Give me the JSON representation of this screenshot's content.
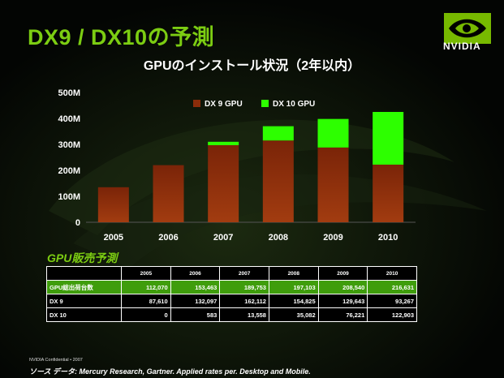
{
  "slide": {
    "title": "DX9 / DX10の予測",
    "logo_text": "NVIDIA",
    "confidential": "NVIDIA Confidential • 2007",
    "source": "ソース データ: Mercury Research, Gartner. Applied rates per. Desktop and Mobile."
  },
  "chart_data": {
    "type": "bar",
    "stacked": true,
    "title": "GPUのインストール状況（2年以内）",
    "categories": [
      "2005",
      "2006",
      "2007",
      "2008",
      "2009",
      "2010"
    ],
    "series": [
      {
        "name": "DX 9 GPU",
        "color": "#8b2c0a",
        "values": [
          135,
          220,
          297,
          315,
          288,
          222
        ]
      },
      {
        "name": "DX 10 GPU",
        "color": "#2dff00",
        "values": [
          0,
          0,
          13,
          55,
          110,
          203
        ]
      }
    ],
    "y_ticks": [
      "0",
      "100M",
      "200M",
      "300M",
      "400M",
      "500M"
    ],
    "ylim": [
      0,
      500
    ],
    "legend_position": "top",
    "grid": false
  },
  "table": {
    "title": "GPU販売予測",
    "header": [
      "",
      "2005",
      "2006",
      "2007",
      "2008",
      "2009",
      "2010"
    ],
    "rows": [
      {
        "label": "GPU総出荷台数",
        "values": [
          "112,070",
          "153,463",
          "189,753",
          "197,103",
          "208,540",
          "216,631"
        ],
        "highlight": true
      },
      {
        "label": "DX 9",
        "values": [
          "87,610",
          "132,097",
          "162,112",
          "154,825",
          "129,643",
          "93,267"
        ],
        "highlight": false
      },
      {
        "label": "DX 10",
        "values": [
          "0",
          "583",
          "13,558",
          "35,082",
          "76,221",
          "122,903"
        ],
        "highlight": false
      }
    ]
  },
  "colors": {
    "accent_green": "#7ccd12",
    "table_highlight": "#3f9d0c"
  }
}
